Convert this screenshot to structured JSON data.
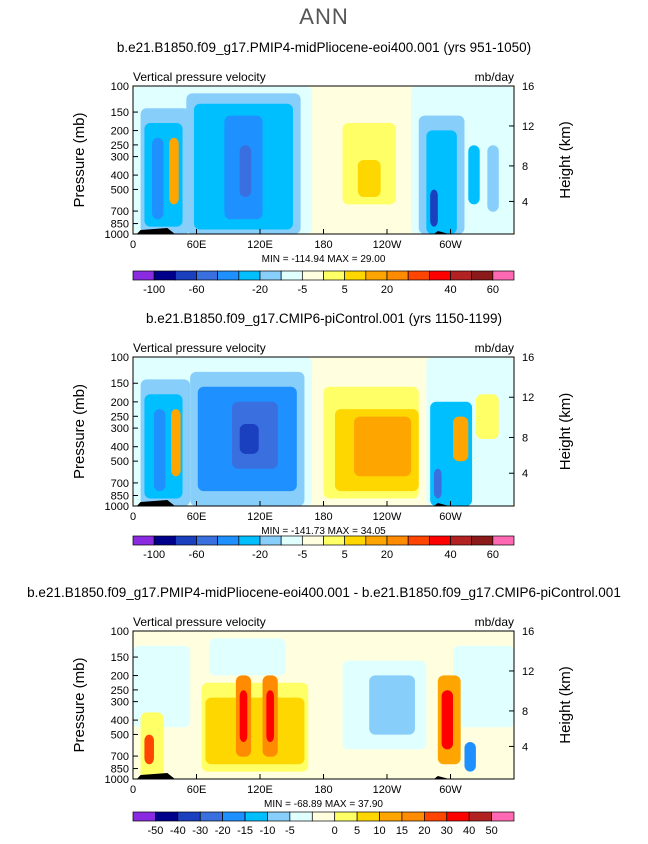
{
  "figure_title": "ANN",
  "chart_data": [
    {
      "type": "heatmap",
      "title": "b.e21.B1850.f09_g17.PMIP4-midPliocene-eoi400.001 (yrs 951-1050)",
      "left_string": "Vertical pressure velocity",
      "right_string": "mb/day",
      "ylabel": "Pressure (mb)",
      "y2label": "Height (km)",
      "x_ticks": [
        "0",
        "60E",
        "120E",
        "180",
        "120W",
        "60W"
      ],
      "y_ticks": [
        "100",
        "150",
        "200",
        "250",
        "300",
        "400",
        "500",
        "700",
        "850",
        "1000"
      ],
      "y2_ticks": [
        "16",
        "12",
        "8",
        "4"
      ],
      "stats": "MIN = -114.94   MAX = 29.00",
      "levels": [
        "-100",
        "-60",
        "-20",
        "-5",
        "5",
        "20",
        "40",
        "60"
      ],
      "colors": [
        "#8a2be2",
        "#00008b",
        "#1a3fbf",
        "#3a6fdf",
        "#1e90ff",
        "#00bfff",
        "#87cefa",
        "#e0ffff",
        "#ffffe0",
        "#ffff66",
        "#ffd700",
        "#ffa500",
        "#ff8c00",
        "#ff4500",
        "#ff0000",
        "#b22222",
        "#8b1a1a",
        "#ff69b4"
      ],
      "min": -114.94,
      "max": 29.0
    },
    {
      "type": "heatmap",
      "title": "b.e21.B1850.f09_g17.CMIP6-piControl.001 (yrs 1150-1199)",
      "left_string": "Vertical pressure velocity",
      "right_string": "mb/day",
      "ylabel": "Pressure (mb)",
      "y2label": "Height (km)",
      "x_ticks": [
        "0",
        "60E",
        "120E",
        "180",
        "120W",
        "60W"
      ],
      "y_ticks": [
        "100",
        "150",
        "200",
        "250",
        "300",
        "400",
        "500",
        "700",
        "850",
        "1000"
      ],
      "y2_ticks": [
        "16",
        "12",
        "8",
        "4"
      ],
      "stats": "MIN = -141.73   MAX = 34.05",
      "levels": [
        "-100",
        "-60",
        "-20",
        "-5",
        "5",
        "20",
        "40",
        "60"
      ],
      "colors": [
        "#8a2be2",
        "#00008b",
        "#1a3fbf",
        "#3a6fdf",
        "#1e90ff",
        "#00bfff",
        "#87cefa",
        "#e0ffff",
        "#ffffe0",
        "#ffff66",
        "#ffd700",
        "#ffa500",
        "#ff8c00",
        "#ff4500",
        "#ff0000",
        "#b22222",
        "#8b1a1a",
        "#ff69b4"
      ],
      "min": -141.73,
      "max": 34.05
    },
    {
      "type": "heatmap",
      "title": "b.e21.B1850.f09_g17.PMIP4-midPliocene-eoi400.001 - b.e21.B1850.f09_g17.CMIP6-piControl.001",
      "left_string": "Vertical pressure velocity",
      "right_string": "mb/day",
      "ylabel": "Pressure (mb)",
      "y2label": "Height (km)",
      "x_ticks": [
        "0",
        "60E",
        "120E",
        "180",
        "120W",
        "60W"
      ],
      "y_ticks": [
        "100",
        "150",
        "200",
        "250",
        "300",
        "400",
        "500",
        "700",
        "850",
        "1000"
      ],
      "y2_ticks": [
        "16",
        "12",
        "8",
        "4"
      ],
      "stats": "MIN = -68.89   MAX = 37.90",
      "levels": [
        "-50",
        "-40",
        "-30",
        "-20",
        "-15",
        "-10",
        "-5",
        "0",
        "5",
        "10",
        "15",
        "20",
        "30",
        "40",
        "50"
      ],
      "colors": [
        "#8a2be2",
        "#00008b",
        "#1a3fbf",
        "#3a6fdf",
        "#1e90ff",
        "#00bfff",
        "#87cefa",
        "#e0ffff",
        "#ffffe0",
        "#ffff66",
        "#ffd700",
        "#ffa500",
        "#ff8c00",
        "#ff4500",
        "#ff0000",
        "#b22222",
        "#ff69b4"
      ],
      "min": -68.89,
      "max": 37.9
    }
  ]
}
